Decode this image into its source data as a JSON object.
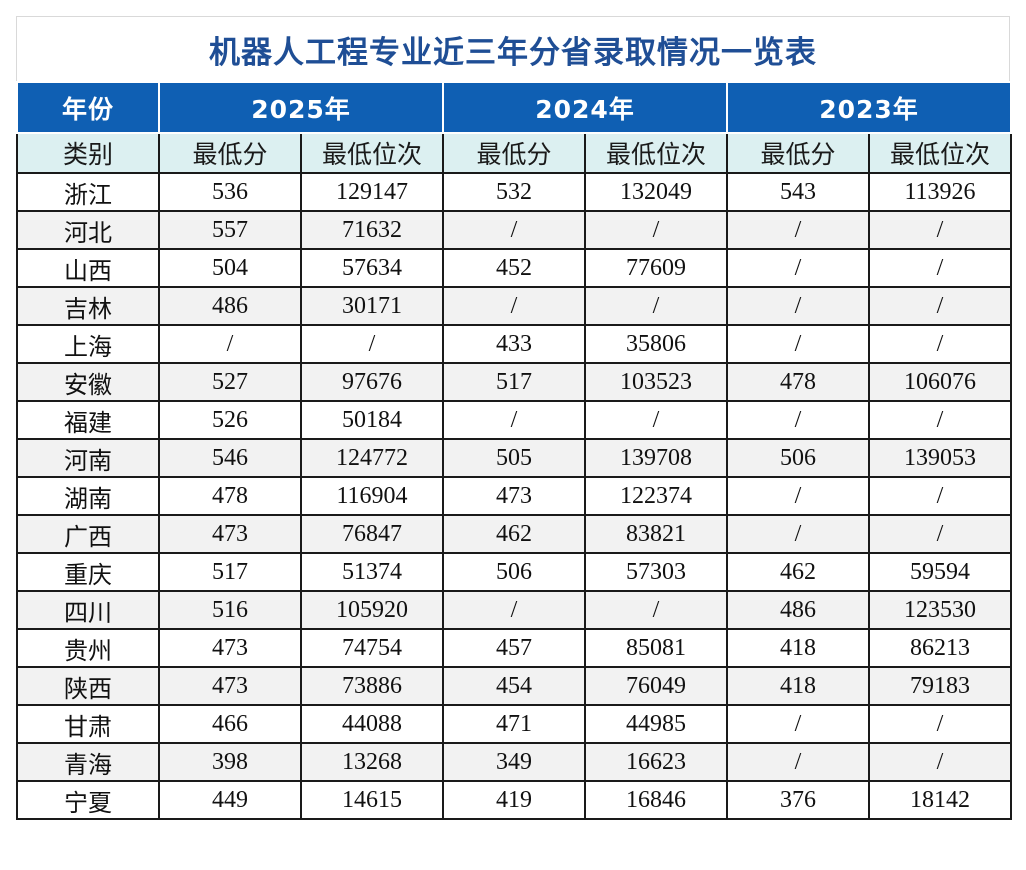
{
  "title": "机器人工程专业近三年分省录取情况一览表",
  "colors": {
    "title": "#1f4e95",
    "header_bg": "#0f5fb3",
    "subheader_bg": "#dcf0f1",
    "alt_row": "#f2f2f2"
  },
  "header": {
    "year_label": "年份",
    "category_label": "类别",
    "years": [
      "2025年",
      "2024年",
      "2023年"
    ],
    "min_score": "最低分",
    "min_rank": "最低位次"
  },
  "rows": [
    {
      "province": "浙江",
      "vals": [
        "536",
        "129147",
        "532",
        "132049",
        "543",
        "113926"
      ]
    },
    {
      "province": "河北",
      "vals": [
        "557",
        "71632",
        "/",
        "/",
        "/",
        "/"
      ]
    },
    {
      "province": "山西",
      "vals": [
        "504",
        "57634",
        "452",
        "77609",
        "/",
        "/"
      ]
    },
    {
      "province": "吉林",
      "vals": [
        "486",
        "30171",
        "/",
        "/",
        "/",
        "/"
      ]
    },
    {
      "province": "上海",
      "vals": [
        "/",
        "/",
        "433",
        "35806",
        "/",
        "/"
      ]
    },
    {
      "province": "安徽",
      "vals": [
        "527",
        "97676",
        "517",
        "103523",
        "478",
        "106076"
      ]
    },
    {
      "province": "福建",
      "vals": [
        "526",
        "50184",
        "/",
        "/",
        "/",
        "/"
      ]
    },
    {
      "province": "河南",
      "vals": [
        "546",
        "124772",
        "505",
        "139708",
        "506",
        "139053"
      ]
    },
    {
      "province": "湖南",
      "vals": [
        "478",
        "116904",
        "473",
        "122374",
        "/",
        "/"
      ]
    },
    {
      "province": "广西",
      "vals": [
        "473",
        "76847",
        "462",
        "83821",
        "/",
        "/"
      ]
    },
    {
      "province": "重庆",
      "vals": [
        "517",
        "51374",
        "506",
        "57303",
        "462",
        "59594"
      ]
    },
    {
      "province": "四川",
      "vals": [
        "516",
        "105920",
        "/",
        "/",
        "486",
        "123530"
      ]
    },
    {
      "province": "贵州",
      "vals": [
        "473",
        "74754",
        "457",
        "85081",
        "418",
        "86213"
      ]
    },
    {
      "province": "陕西",
      "vals": [
        "473",
        "73886",
        "454",
        "76049",
        "418",
        "79183"
      ]
    },
    {
      "province": "甘肃",
      "vals": [
        "466",
        "44088",
        "471",
        "44985",
        "/",
        "/"
      ]
    },
    {
      "province": "青海",
      "vals": [
        "398",
        "13268",
        "349",
        "16623",
        "/",
        "/"
      ]
    },
    {
      "province": "宁夏",
      "vals": [
        "449",
        "14615",
        "419",
        "16846",
        "376",
        "18142"
      ]
    }
  ]
}
